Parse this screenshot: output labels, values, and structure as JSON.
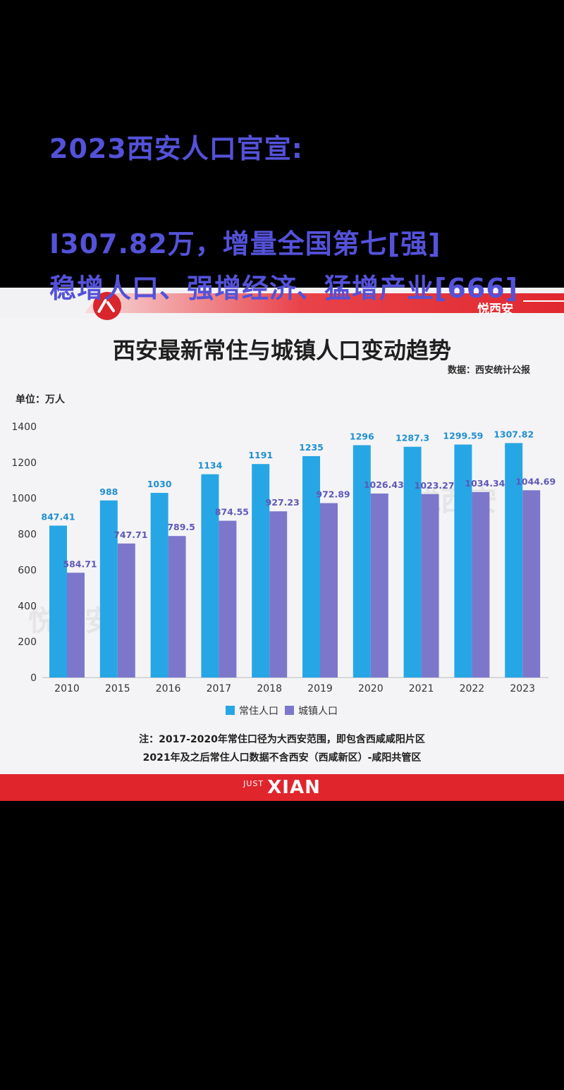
{
  "post": {
    "line1": "2023西安人口官宣:",
    "line2": "I307.82万，增量全国第七[强]",
    "line3": "稳增人口、强增经济、猛增产业[666]"
  },
  "brand": "悦西安",
  "watermark": "悦西安",
  "chart_data": {
    "type": "bar",
    "title": "西安最新常住与城镇人口变动趋势",
    "source": "数据：西安统计公报",
    "unit": "单位：万人",
    "categories": [
      "2010",
      "2015",
      "2016",
      "2017",
      "2018",
      "2019",
      "2020",
      "2021",
      "2022",
      "2023"
    ],
    "series": [
      {
        "name": "常住人口",
        "color": "#27a6e5",
        "values": [
          847.41,
          988,
          1030,
          1134,
          1191,
          1235,
          1296,
          1287.3,
          1299.59,
          1307.82
        ],
        "labels": [
          "847.41",
          "988",
          "1030",
          "1134",
          "1191",
          "1235",
          "1296",
          "1287.3",
          "1299.59",
          "1307.82"
        ]
      },
      {
        "name": "城镇人口",
        "color": "#7c77cb",
        "values": [
          584.71,
          747.71,
          789.5,
          874.55,
          927.23,
          972.89,
          1026.43,
          1023.27,
          1034.34,
          1044.69
        ],
        "labels": [
          "584.71",
          "747.71",
          "789.5",
          "874.55",
          "927.23",
          "972.89",
          "1026.43",
          "1023.27",
          "1034.34",
          "1044.69"
        ]
      }
    ],
    "ylim": [
      0,
      1400
    ],
    "yticks": [
      0,
      200,
      400,
      600,
      800,
      1000,
      1200,
      1400
    ],
    "grid": false,
    "legend_position": "bottom-center",
    "notes": [
      "注：2017-2020年常住口径为大西安范围，即包含西咸咸阳片区",
      "2021年及之后常住人口数据不含西安（西咸新区）-咸阳共管区"
    ]
  },
  "footer": {
    "small": "JUST",
    "big": "XIAN"
  }
}
